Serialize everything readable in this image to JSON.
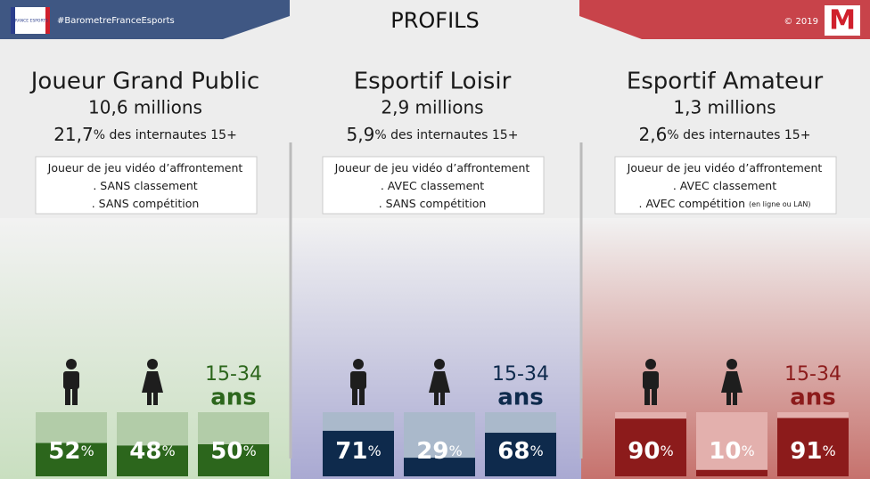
{
  "header": {
    "logo_text": "FRANCE ESPORTS",
    "hashtag": "#BarometreFranceEsports",
    "title": "PROFILS",
    "copyright": "© 2019",
    "brand": "M"
  },
  "profiles": [
    {
      "name": "Joueur Grand Public",
      "population": "10,6 millions",
      "share": "21,7",
      "share_text": "% des internautes 15+",
      "description": [
        "Joueur de jeu vidéo d’affrontement",
        ". SANS classement",
        ". SANS compétition"
      ],
      "age_range": "15-34",
      "age_unit": "ans",
      "color": "#2c661c",
      "light": "#b2cca8",
      "tint": "#c9dfc0",
      "stats": [
        {
          "value": 52,
          "unit": "%"
        },
        {
          "value": 48,
          "unit": "%"
        },
        {
          "value": 50,
          "unit": "%"
        }
      ]
    },
    {
      "name": "Esportif Loisir",
      "population": "2,9 millions",
      "share": "5,9",
      "share_text": "% des internautes 15+",
      "description": [
        "Joueur de jeu vidéo d’affrontement",
        ". AVEC classement",
        ". SANS compétition"
      ],
      "age_range": "15-34",
      "age_unit": "ans",
      "color": "#0e2a4c",
      "light": "#aab9cb",
      "tint": "#a9a9d2",
      "stats": [
        {
          "value": 71,
          "unit": "%"
        },
        {
          "value": 29,
          "unit": "%"
        },
        {
          "value": 68,
          "unit": "%"
        }
      ]
    },
    {
      "name": "Esportif Amateur",
      "population": "1,3 millions",
      "share": "2,6",
      "share_text": "% des internautes 15+",
      "description": [
        "Joueur de jeu vidéo d’affrontement",
        ". AVEC classement",
        ". AVEC compétition"
      ],
      "description_note": "(en ligne ou LAN)",
      "age_range": "15-34",
      "age_unit": "ans",
      "color": "#8c1b1b",
      "light": "#e3b0ad",
      "tint": "#c6726d",
      "stats": [
        {
          "value": 90,
          "unit": "%"
        },
        {
          "value": 10,
          "unit": "%"
        },
        {
          "value": 91,
          "unit": "%"
        }
      ]
    }
  ]
}
